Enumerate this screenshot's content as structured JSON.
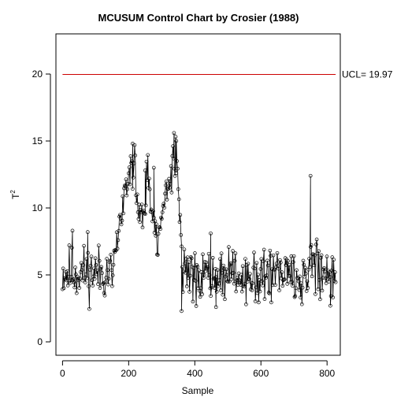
{
  "chart_data": {
    "type": "line",
    "title": "MCUSUM Control Chart by Crosier (1988)",
    "xlabel": "Sample",
    "ylabel_base": "T",
    "ylabel_sup": "2",
    "xlim": [
      -20,
      840
    ],
    "ylim": [
      -1,
      23
    ],
    "xticks": [
      0,
      200,
      400,
      600,
      800
    ],
    "yticks": [
      0,
      5,
      10,
      15,
      20
    ],
    "grid": false,
    "ucl": {
      "value": 19.97,
      "label": "UCL= 19.97",
      "color": "#cc0000"
    },
    "series_color": "#000000",
    "marker": "open-circle",
    "segments": [
      {
        "x_start": 0,
        "x_end": 150,
        "count": 75,
        "level": 5.2,
        "noise": 1.0,
        "seed": 11
      },
      {
        "x_start": 152,
        "x_end": 180,
        "count": 15,
        "level_from": 6.0,
        "level_to": 9.5,
        "noise": 0.6,
        "seed": 12
      },
      {
        "x_start": 182,
        "x_end": 220,
        "count": 20,
        "level_from": 11.0,
        "level_to": 13.6,
        "noise": 0.8,
        "seed": 13
      },
      {
        "x_start": 222,
        "x_end": 240,
        "count": 10,
        "level_from": 11.5,
        "level_to": 9.5,
        "noise": 0.9,
        "seed": 14
      },
      {
        "x_start": 242,
        "x_end": 262,
        "count": 11,
        "level_from": 9.5,
        "level_to": 12.5,
        "noise": 0.9,
        "seed": 15
      },
      {
        "x_start": 264,
        "x_end": 290,
        "count": 14,
        "level_from": 11.0,
        "level_to": 7.0,
        "noise": 0.8,
        "seed": 16
      },
      {
        "x_start": 292,
        "x_end": 320,
        "count": 15,
        "level_from": 8.5,
        "level_to": 12.5,
        "noise": 0.7,
        "seed": 17
      },
      {
        "x_start": 322,
        "x_end": 348,
        "count": 14,
        "level_from": 12.5,
        "level_to": 14.2,
        "noise": 0.8,
        "seed": 18
      },
      {
        "x_start": 350,
        "x_end": 362,
        "count": 7,
        "level_from": 12.0,
        "level_to": 6.0,
        "noise": 0.7,
        "seed": 19
      },
      {
        "x_start": 364,
        "x_end": 740,
        "count": 188,
        "level": 4.9,
        "noise": 0.9,
        "seed": 20
      },
      {
        "x_start": 742,
        "x_end": 775,
        "count": 17,
        "level": 6.3,
        "noise": 1.3,
        "seed": 21
      },
      {
        "x_start": 777,
        "x_end": 826,
        "count": 25,
        "level": 4.8,
        "noise": 0.9,
        "seed": 22
      }
    ],
    "highlights": [
      {
        "x": 30,
        "y": 8.3
      },
      {
        "x": 76,
        "y": 8.2
      },
      {
        "x": 212,
        "y": 14.8
      },
      {
        "x": 250,
        "y": 12.8
      },
      {
        "x": 276,
        "y": 13.0
      },
      {
        "x": 337,
        "y": 15.6
      },
      {
        "x": 344,
        "y": 15.0
      },
      {
        "x": 360,
        "y": 2.3
      },
      {
        "x": 448,
        "y": 8.1
      },
      {
        "x": 464,
        "y": 2.6
      },
      {
        "x": 750,
        "y": 12.4
      },
      {
        "x": 810,
        "y": 2.7
      }
    ]
  }
}
